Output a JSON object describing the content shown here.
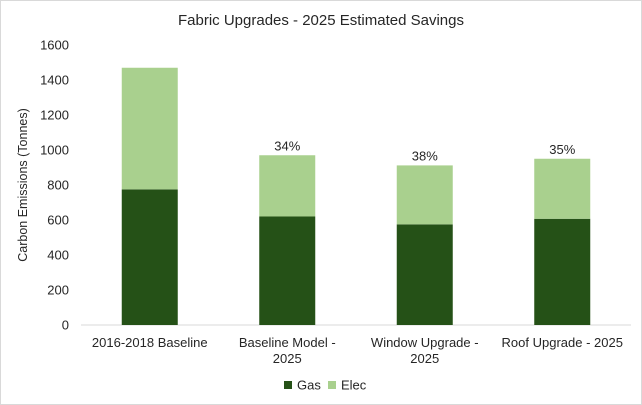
{
  "chart_data": {
    "type": "bar",
    "stacked": true,
    "title": "Fabric Upgrades - 2025 Estimated Savings",
    "xlabel": "",
    "ylabel": "Carbon Emissions (Tonnes)",
    "ylim": [
      0,
      1600
    ],
    "yticks": [
      0,
      200,
      400,
      600,
      800,
      1000,
      1200,
      1400,
      1600
    ],
    "categories": [
      [
        "2016-2018 Baseline"
      ],
      [
        "Baseline Model -",
        "2025"
      ],
      [
        "Window Upgrade -",
        "2025"
      ],
      [
        "Roof Upgrade - 2025"
      ]
    ],
    "series": [
      {
        "name": "Gas",
        "color": "#255117",
        "values": [
          775,
          620,
          575,
          607
        ]
      },
      {
        "name": "Elec",
        "color": "#a9d08e",
        "values": [
          695,
          350,
          337,
          343
        ]
      }
    ],
    "data_labels": [
      "",
      "34%",
      "38%",
      "35%"
    ],
    "grid": false,
    "legend_position": "bottom"
  }
}
